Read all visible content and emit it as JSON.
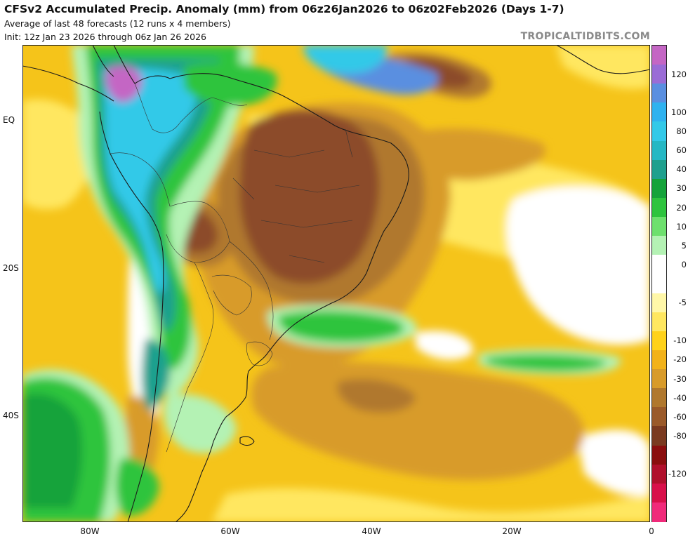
{
  "header": {
    "title": "CFSv2 Accumulated Precip. Anomaly (mm) from 06z26Jan2026 to 06z02Feb2026 (Days 1-7)",
    "subtitle1": "Average of last 48 forecasts (12 runs x 4 members)",
    "subtitle2": "Init: 12z Jan 23 2026 through 06z Jan 26 2026",
    "brand": "TROPICALTIDBITS.COM"
  },
  "axes": {
    "lat_labels": [
      "EQ",
      "20S",
      "40S"
    ],
    "lon_labels": [
      "80W",
      "60W",
      "40W",
      "20W",
      "0"
    ]
  },
  "colorbar": {
    "labels": [
      "120",
      "100",
      "80",
      "60",
      "40",
      "30",
      "20",
      "10",
      "5",
      "0",
      "-5",
      "-10",
      "-20",
      "-30",
      "-40",
      "-60",
      "-80",
      "-120"
    ],
    "colors": [
      "#c466c4",
      "#9a6cd6",
      "#5a8fe0",
      "#2fb2ef",
      "#33c9e8",
      "#26b8c4",
      "#1fa08e",
      "#15a33a",
      "#2ec43e",
      "#6ee06e",
      "#b4f2b4",
      "#ffffff",
      "#ffffff",
      "#fff7a8",
      "#ffe760",
      "#ffd21a",
      "#f2b21a",
      "#d89b2a",
      "#b0782e",
      "#9a5a2a",
      "#7a3a20",
      "#8a0e0e",
      "#b0102c",
      "#d8104a",
      "#f02a7a"
    ]
  },
  "map": {
    "colors": {
      "dry_strong": "#8c4b2a",
      "dry_mid": "#b0782e",
      "dry_light": "#d89b2a",
      "dry_yellow": "#f5c41a",
      "dry_pale": "#ffe760",
      "near_zero": "#ffffff",
      "wet_pale": "#b4f2b4",
      "wet_green": "#2ec43e",
      "wet_dark": "#15a33a",
      "wet_teal": "#1fa08e",
      "wet_cyan": "#33c9e8",
      "wet_blue": "#5a8fe0",
      "wet_purple": "#c466c4"
    }
  }
}
